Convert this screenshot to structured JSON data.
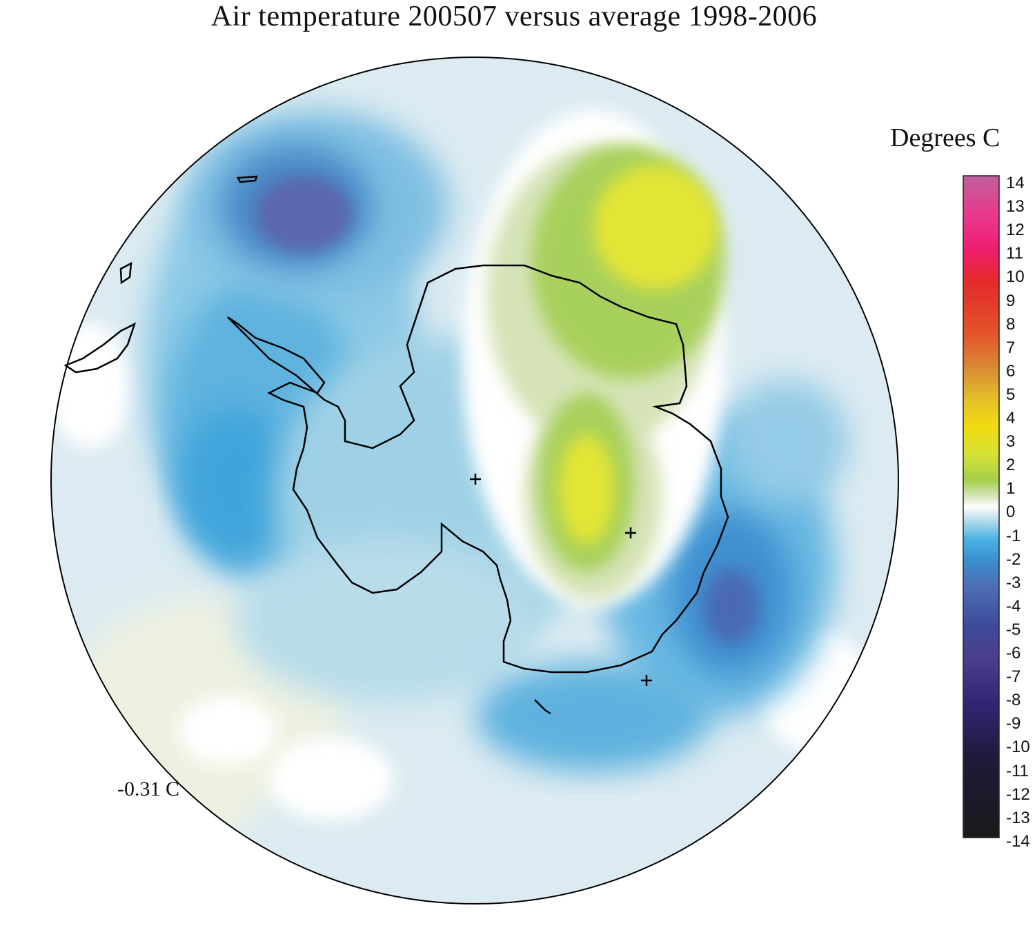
{
  "title": "Air temperature 200507 versus average 1998-2006",
  "legend": {
    "title": "Degrees C",
    "ticks": [
      "14",
      "13",
      "12",
      "11",
      "10",
      "9",
      "8",
      "7",
      "6",
      "5",
      "4",
      "3",
      "2",
      "1",
      "0",
      "-1",
      "-2",
      "-3",
      "-4",
      "-5",
      "-6",
      "-7",
      "-8",
      "-9",
      "-10",
      "-11",
      "-12",
      "-13",
      "-14"
    ],
    "colors": {
      "pos_14": "#c0609c",
      "pos_13": "#e8388c",
      "pos_12": "#f01e72",
      "pos_11": "#e9242e",
      "pos_10": "#e23a2a",
      "pos_9": "#e35a27",
      "pos_8": "#e57b2a",
      "pos_7": "#d8903a",
      "pos_6": "#e6c22a",
      "pos_5": "#f0dc10",
      "pos_4": "#e8e432",
      "pos_3": "#c6dc3a",
      "pos_2": "#9cc94c",
      "pos_1": "#d8e6bf",
      "zero": "#ffffff",
      "neg_1": "#c9e4ee",
      "neg_2": "#49b1e3",
      "neg_3": "#3b8fd0",
      "neg_4": "#4d73b8",
      "neg_5": "#4a5aa9",
      "neg_6": "#3f4a9a",
      "neg_7": "#3a3c8a",
      "neg_8": "#4c3e8c",
      "neg_9": "#3d2a7a",
      "neg_10": "#332473",
      "neg_11": "#261a5a",
      "neg_12": "#1c1838",
      "neg_13": "#1f1f25",
      "neg_14": "#1a1a1a"
    }
  },
  "mean_anomaly": "-0.31 C",
  "markers": [
    "station-marker",
    "station-marker",
    "station-marker"
  ]
}
